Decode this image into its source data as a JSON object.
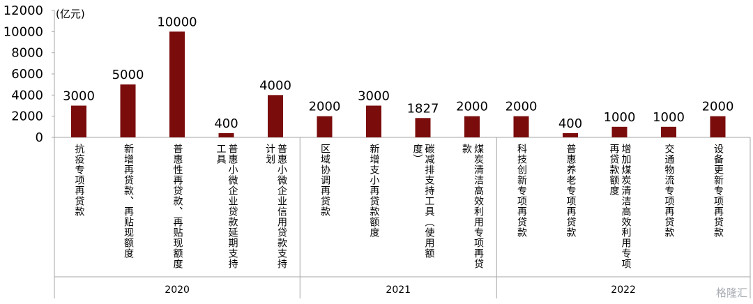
{
  "chart_data": {
    "type": "bar",
    "unit_label": "(亿元)",
    "ylim": [
      0,
      12000
    ],
    "yticks": [
      "12000",
      "10000",
      "8000",
      "6000",
      "4000",
      "2000",
      "0"
    ],
    "bar_color": "#7b0c0c",
    "categories": [
      "抗疫专项再贷款",
      "新增再贷款、再贴现额度",
      "普惠性再贷款、再贴现额度",
      "普惠小微企业贷款延期支持\n工具",
      "普惠小微企业信用贷款支持\n计划",
      "区域协调再贷款",
      "新增支小再贷款额度",
      "碳减排支持工具（使用额\n度）",
      "煤炭清洁高效利用专项再贷\n款",
      "科技创新专项再贷款",
      "普惠养老专项再贷款",
      "增加煤炭清洁高效利用专项\n再贷款额度",
      "交通物流专项再贷款",
      "设备更新专项再贷款"
    ],
    "values": [
      3000,
      5000,
      10000,
      400,
      4000,
      2000,
      3000,
      1827,
      2000,
      2000,
      400,
      1000,
      1000,
      2000
    ],
    "value_labels": [
      "3000",
      "5000",
      "10000",
      "400",
      "4000",
      "2000",
      "3000",
      "1827",
      "2000",
      "2000",
      "400",
      "1000",
      "1000",
      "2000"
    ],
    "groups": [
      {
        "label": "2020",
        "start": 0,
        "end": 4
      },
      {
        "label": "2021",
        "start": 5,
        "end": 8
      },
      {
        "label": "2022",
        "start": 9,
        "end": 13
      }
    ]
  },
  "watermark": "格隆汇"
}
